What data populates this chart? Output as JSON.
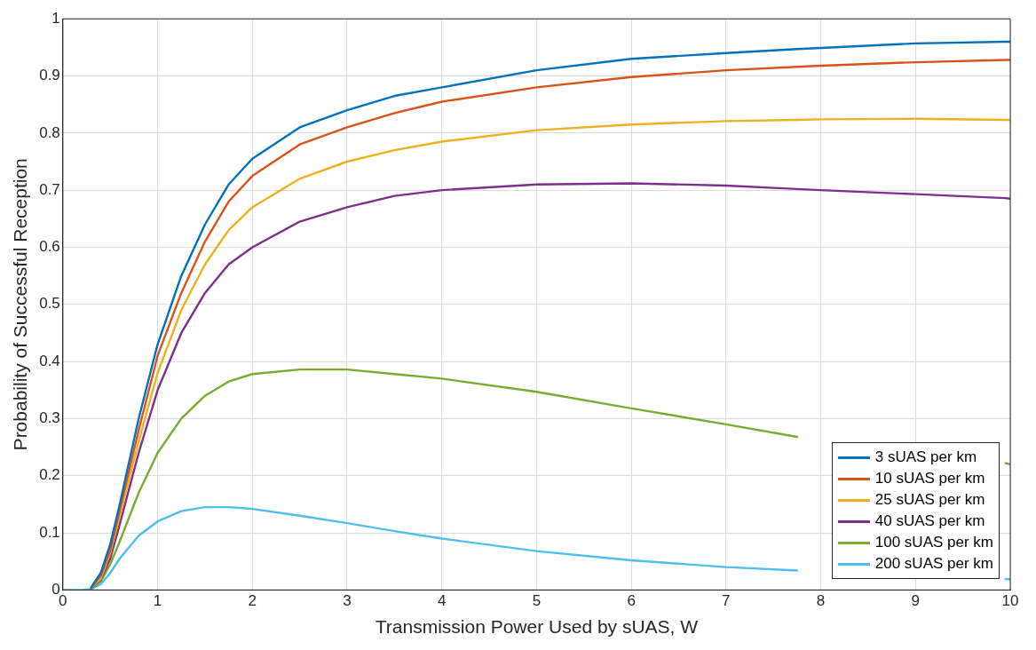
{
  "chart_data": {
    "type": "line",
    "xlabel": "Transmission Power Used by sUAS, W",
    "ylabel": "Probability of Successful Reception",
    "x": [
      0,
      0.2,
      0.3,
      0.4,
      0.5,
      0.6,
      0.8,
      1,
      1.25,
      1.5,
      1.75,
      2,
      2.5,
      3,
      3.5,
      4,
      5,
      6,
      7,
      7.75,
      8,
      9,
      9.95,
      10
    ],
    "series": [
      {
        "name": "3 sUAS per km",
        "color": "#0072bd",
        "values": [
          null,
          null,
          0.005,
          0.03,
          0.08,
          0.15,
          0.3,
          0.43,
          0.55,
          0.64,
          0.71,
          0.755,
          0.81,
          0.84,
          0.865,
          0.88,
          0.91,
          0.93,
          0.94,
          0.947,
          0.949,
          0.957,
          0.96,
          0.96
        ]
      },
      {
        "name": "10 sUAS per km",
        "color": "#d95319",
        "values": [
          null,
          null,
          0.004,
          0.025,
          0.07,
          0.14,
          0.28,
          0.41,
          0.52,
          0.61,
          0.68,
          0.725,
          0.78,
          0.81,
          0.835,
          0.855,
          0.88,
          0.898,
          0.91,
          0.916,
          0.918,
          0.924,
          0.928,
          0.928
        ]
      },
      {
        "name": "25 sUAS per km",
        "color": "#edb120",
        "values": [
          null,
          null,
          0.004,
          0.02,
          0.065,
          0.13,
          0.26,
          0.38,
          0.49,
          0.57,
          0.63,
          0.67,
          0.72,
          0.75,
          0.77,
          0.785,
          0.805,
          0.815,
          0.821,
          0.823,
          0.824,
          0.825,
          0.823,
          0.823
        ]
      },
      {
        "name": "40 sUAS per km",
        "color": "#7e2f8e",
        "values": [
          null,
          null,
          0.003,
          0.018,
          0.055,
          0.115,
          0.24,
          0.35,
          0.45,
          0.52,
          0.57,
          0.6,
          0.645,
          0.67,
          0.69,
          0.7,
          0.71,
          0.712,
          0.708,
          0.702,
          0.7,
          0.693,
          0.686,
          0.685
        ]
      },
      {
        "name": "100 sUAS per km",
        "color": "#77ac30",
        "values": [
          null,
          null,
          0.003,
          0.015,
          0.045,
          0.085,
          0.17,
          0.24,
          0.3,
          0.34,
          0.365,
          0.378,
          0.386,
          0.386,
          0.378,
          0.37,
          0.347,
          0.318,
          0.29,
          0.268,
          null,
          null,
          0.222,
          0.22
        ]
      },
      {
        "name": "200 sUAS per km",
        "color": "#4dbeee",
        "values": [
          0,
          0,
          0.002,
          0.01,
          0.03,
          0.055,
          0.095,
          0.12,
          0.138,
          0.145,
          0.145,
          0.142,
          0.13,
          0.117,
          0.103,
          0.09,
          0.068,
          0.052,
          0.04,
          0.034,
          null,
          null,
          0.019,
          0.019
        ]
      }
    ],
    "xlim": [
      0,
      10
    ],
    "xticks": [
      0,
      1,
      2,
      3,
      4,
      5,
      6,
      7,
      8,
      9,
      10
    ],
    "ylim": [
      0,
      1
    ],
    "yticks": [
      0,
      0.1,
      0.2,
      0.3,
      0.4,
      0.5,
      0.6,
      0.7,
      0.8,
      0.9,
      1
    ],
    "grid": true,
    "legend": "bottom right"
  }
}
